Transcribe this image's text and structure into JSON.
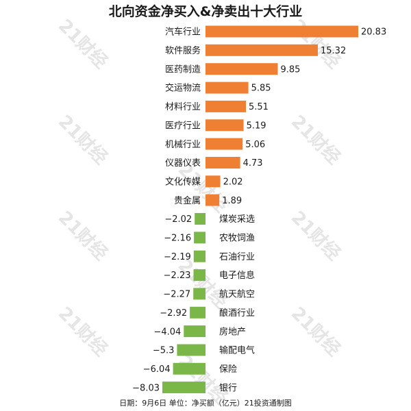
{
  "title": "北向资金净买入&净卖出十大行业",
  "footnote": "日期：9月6日 单位：净买额（亿元）21投资通制图",
  "watermark_text": "21财经",
  "colors": {
    "positive": "#ef7f33",
    "negative": "#7ab648",
    "text": "#1a1a1a"
  },
  "chart_data": {
    "type": "bar",
    "orientation": "horizontal",
    "title": "北向资金净买入&净卖出十大行业",
    "xlabel": "",
    "ylabel": "",
    "categories": [
      "汽车行业",
      "软件服务",
      "医药制造",
      "交运物流",
      "材料行业",
      "医疗行业",
      "机械行业",
      "仪器仪表",
      "文化传媒",
      "贵金属",
      "煤炭采选",
      "农牧饲渔",
      "石油行业",
      "电子信息",
      "航天航空",
      "酿酒行业",
      "房地产",
      "输配电气",
      "保险",
      "银行"
    ],
    "values": [
      20.83,
      15.32,
      9.85,
      5.85,
      5.51,
      5.19,
      5.06,
      4.73,
      2.02,
      1.89,
      -2.02,
      -2.16,
      -2.19,
      -2.23,
      -2.27,
      -2.92,
      -4.04,
      -5.3,
      -6.04,
      -8.03
    ],
    "value_labels": [
      "20.83",
      "15.32",
      "9.85",
      "5.85",
      "5.51",
      "5.19",
      "5.06",
      "4.73",
      "2.02",
      "1.89",
      "−2.02",
      "−2.16",
      "−2.19",
      "−2.23",
      "−2.27",
      "−2.92",
      "−4.04",
      "−5.3",
      "−6.04",
      "−8.03"
    ],
    "xlim": [
      -8.03,
      20.83
    ],
    "grid": false,
    "legend": "none"
  }
}
